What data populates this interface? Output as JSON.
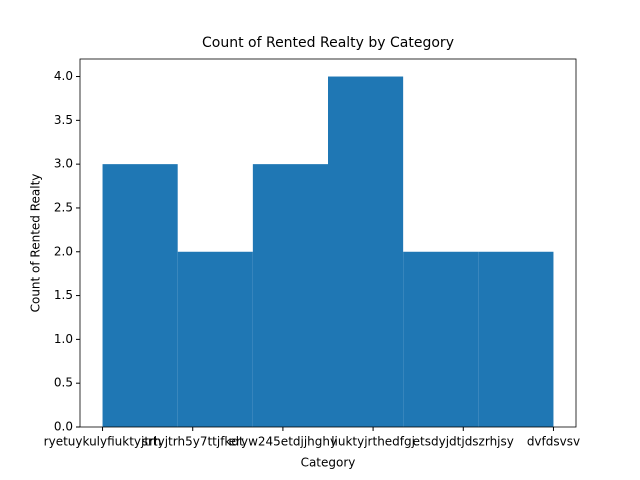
{
  "chart_data": {
    "type": "histogram",
    "title": "Count of Rented Realty by Category",
    "x_label": "Category",
    "y_label": "Count of Rented Realty",
    "categories": [
      "ryetuykulyfiuktyjtrh",
      "srtyjtrh5y7ttjfkdt",
      "eryw245etdjjhghy",
      "liuktyjrthedfgj",
      "etsdyjdtjdszrhjsy",
      "dvfdsvsv"
    ],
    "bins": [
      0,
      0.8333,
      1.6667,
      2.5,
      3.3333,
      4.1667,
      5
    ],
    "counts": [
      3,
      2,
      3,
      4,
      2,
      2
    ],
    "color": "#1f77b4",
    "xlim": [
      -0.25,
      5.25
    ],
    "ylim": [
      0,
      4.2
    ],
    "yticks": [
      {
        "value": 0,
        "label": "0.0"
      },
      {
        "value": 0.5,
        "label": "0.5"
      },
      {
        "value": 1,
        "label": "1.0"
      },
      {
        "value": 1.5,
        "label": "1.5"
      },
      {
        "value": 2,
        "label": "2.0"
      },
      {
        "value": 2.5,
        "label": "2.5"
      },
      {
        "value": 3,
        "label": "3.0"
      },
      {
        "value": 3.5,
        "label": "3.5"
      },
      {
        "value": 4,
        "label": "4.0"
      }
    ]
  }
}
